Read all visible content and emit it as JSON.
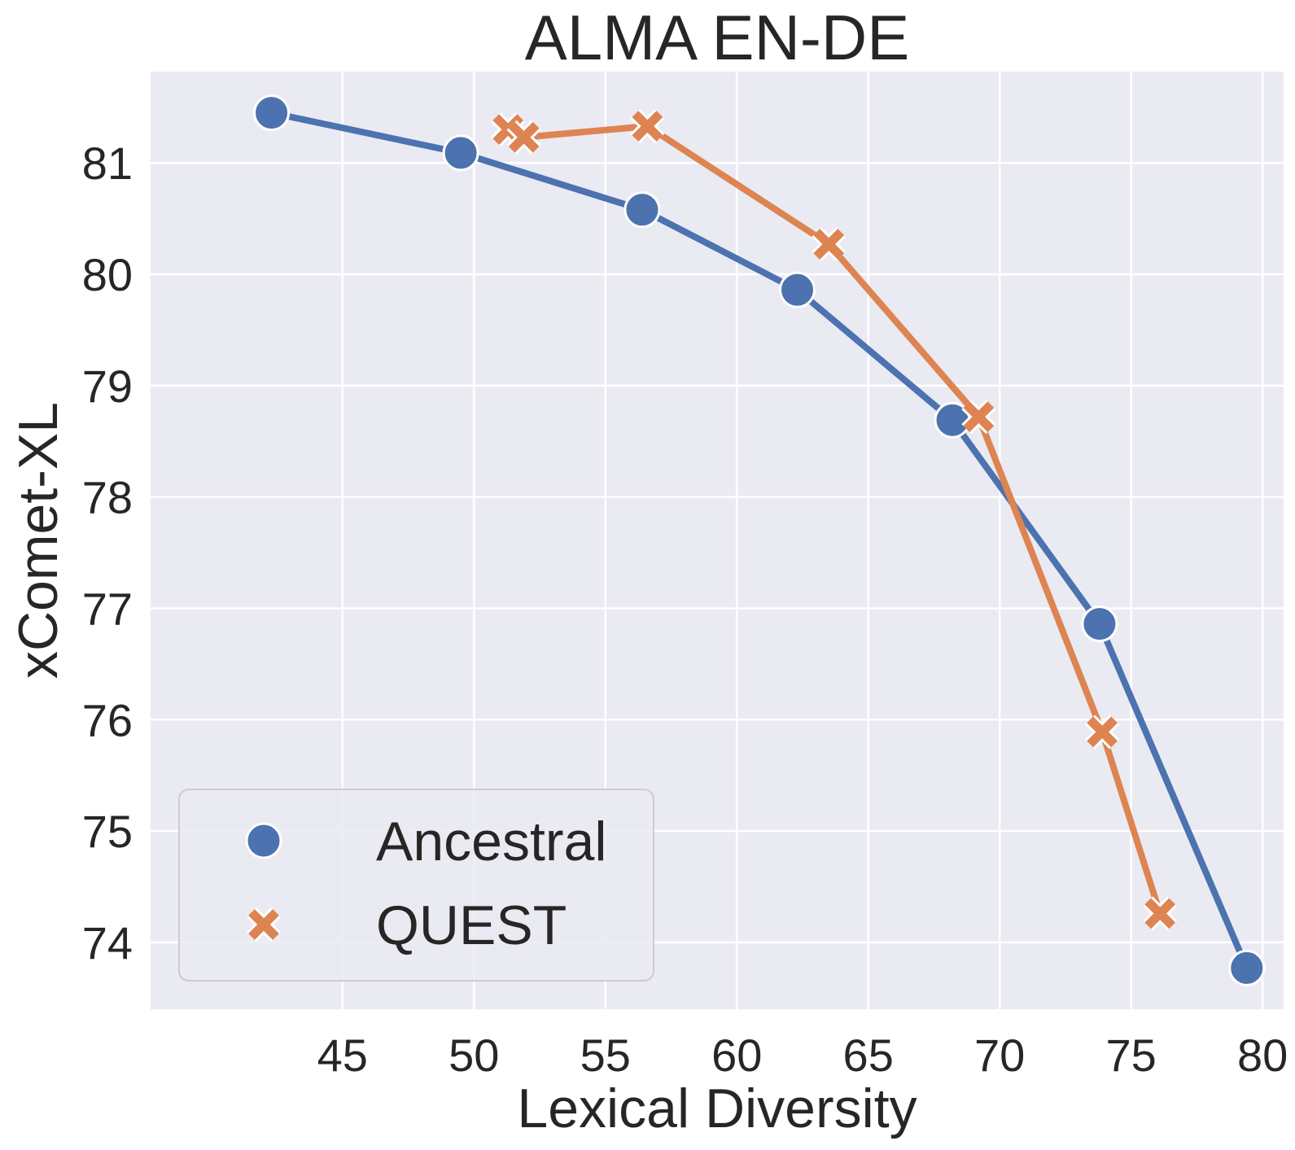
{
  "chart_data": {
    "type": "line",
    "title": "ALMA EN-DE",
    "xlabel": "Lexical Diversity",
    "ylabel": "xComet-XL",
    "xlim": [
      37.7,
      80.8
    ],
    "ylim": [
      73.4,
      81.82
    ],
    "xticks": [
      45,
      50,
      55,
      60,
      65,
      70,
      75,
      80
    ],
    "yticks": [
      74,
      75,
      76,
      77,
      78,
      79,
      80,
      81
    ],
    "xtick_labels": [
      "45",
      "50",
      "55",
      "60",
      "65",
      "70",
      "75",
      "80"
    ],
    "ytick_labels": [
      "74",
      "75",
      "76",
      "77",
      "78",
      "79",
      "80",
      "81"
    ],
    "grid": true,
    "legend_position": "lower-left",
    "series": [
      {
        "name": "Ancestral",
        "marker": "circle",
        "color": "#4c72b0",
        "x": [
          42.3,
          49.5,
          56.4,
          62.3,
          68.2,
          73.8,
          79.4
        ],
        "y": [
          81.45,
          81.09,
          80.58,
          79.86,
          78.69,
          76.86,
          73.77
        ]
      },
      {
        "name": "QUEST",
        "marker": "x",
        "color": "#dd8452",
        "x": [
          51.3,
          51.9,
          56.6,
          63.5,
          69.2,
          73.9,
          76.1
        ],
        "y": [
          81.3,
          81.23,
          81.33,
          80.27,
          78.72,
          75.89,
          74.26
        ]
      }
    ]
  }
}
